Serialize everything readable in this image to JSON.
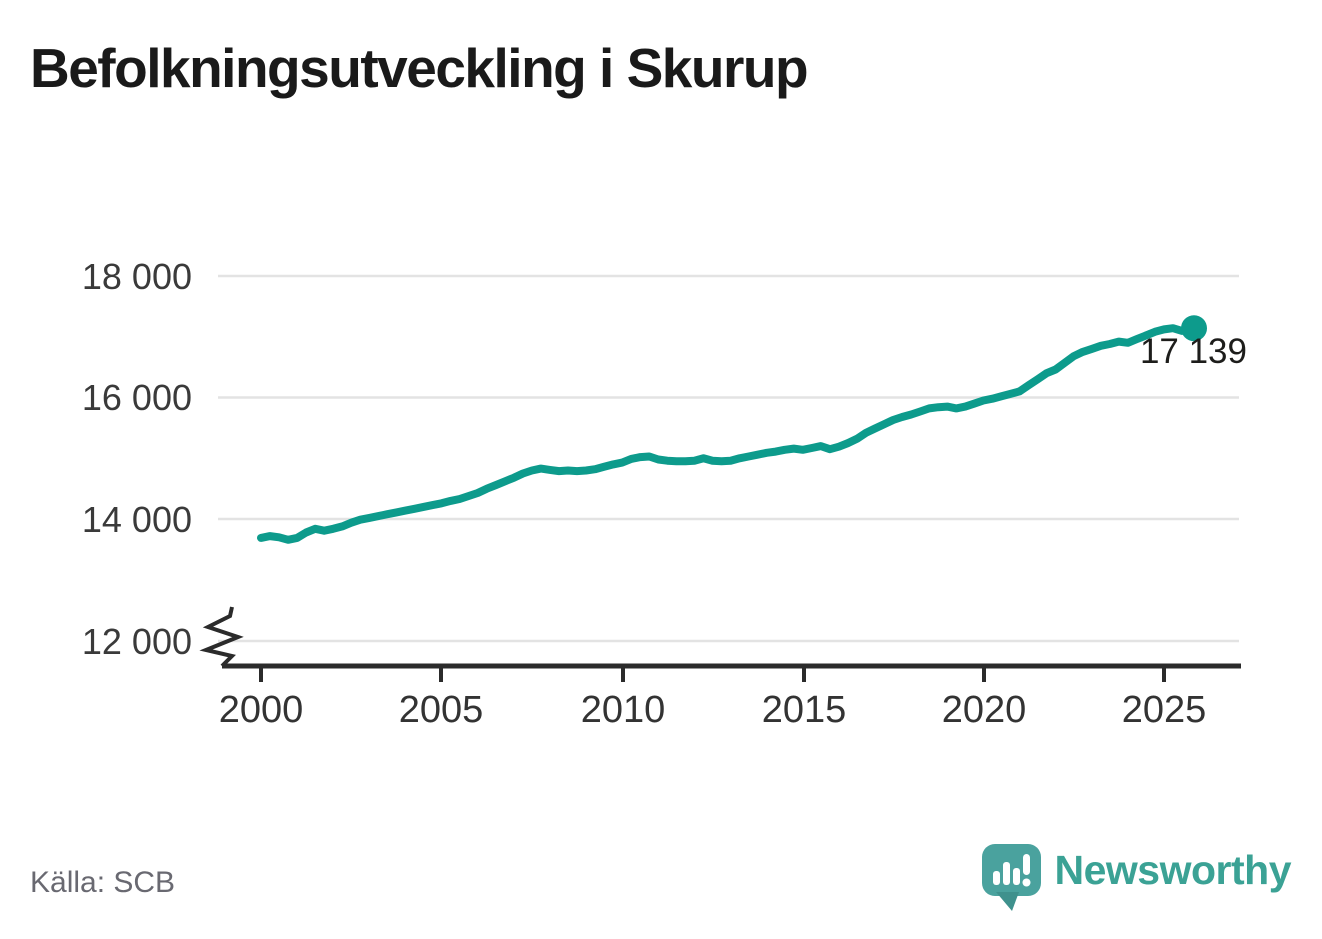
{
  "title": "Befolkningsutveckling i Skurup",
  "source": "Källa: SCB",
  "branding": {
    "name": "Newsworthy",
    "icon": "newsworthy-speech-bubble-chart-icon"
  },
  "colors": {
    "line": "#0d9b8c",
    "dot": "#0d9b8c",
    "logo_bubble": "#4aa29e",
    "logo_tail": "#3f918d",
    "wordmark": "#3ba295",
    "grid": "#e3e3e3",
    "axis": "#2b2b2b"
  },
  "chart_data": {
    "type": "line",
    "title": "Befolkningsutveckling i Skurup",
    "series_name": "Befolkning i Skurup",
    "xlabel": "",
    "ylabel": "",
    "xlim": [
      1999,
      2027.2
    ],
    "ylim": [
      12000,
      18000
    ],
    "grid": "horizontal",
    "axis_break_below": 12000,
    "legend": "none",
    "xticks": [
      "2000",
      "2005",
      "2010",
      "2015",
      "2020",
      "2025"
    ],
    "yticks": [
      "18 000",
      "16 000",
      "14 000",
      "12 000"
    ],
    "ytick_values": [
      18000,
      16000,
      14000,
      12000
    ],
    "end_label": "17 139",
    "end_value": 17139,
    "x": [
      2000.0,
      2000.25,
      2000.5,
      2000.75,
      2001.0,
      2001.25,
      2001.5,
      2001.75,
      2002.0,
      2002.25,
      2002.5,
      2002.75,
      2003.0,
      2003.25,
      2003.5,
      2003.75,
      2004.0,
      2004.25,
      2004.5,
      2004.75,
      2005.0,
      2005.25,
      2005.5,
      2005.75,
      2006.0,
      2006.25,
      2006.5,
      2006.75,
      2007.0,
      2007.25,
      2007.5,
      2007.75,
      2008.0,
      2008.25,
      2008.5,
      2008.75,
      2009.0,
      2009.25,
      2009.5,
      2009.75,
      2010.0,
      2010.25,
      2010.5,
      2010.75,
      2011.0,
      2011.25,
      2011.5,
      2011.75,
      2012.0,
      2012.25,
      2012.5,
      2012.75,
      2013.0,
      2013.25,
      2013.5,
      2013.75,
      2014.0,
      2014.25,
      2014.5,
      2014.75,
      2015.0,
      2015.25,
      2015.5,
      2015.75,
      2016.0,
      2016.25,
      2016.5,
      2016.75,
      2017.0,
      2017.25,
      2017.5,
      2017.75,
      2018.0,
      2018.25,
      2018.5,
      2018.75,
      2019.0,
      2019.25,
      2019.5,
      2019.75,
      2020.0,
      2020.25,
      2020.5,
      2020.75,
      2021.0,
      2021.25,
      2021.5,
      2021.75,
      2022.0,
      2022.25,
      2022.5,
      2022.75,
      2023.0,
      2023.25,
      2023.5,
      2023.75,
      2024.0,
      2024.25,
      2024.5,
      2024.75,
      2025.0,
      2025.25,
      2025.5,
      2025.83
    ],
    "y": [
      13690,
      13720,
      13700,
      13660,
      13690,
      13780,
      13840,
      13810,
      13840,
      13880,
      13940,
      13990,
      14020,
      14050,
      14080,
      14110,
      14140,
      14170,
      14200,
      14230,
      14260,
      14300,
      14330,
      14380,
      14430,
      14500,
      14560,
      14620,
      14680,
      14750,
      14800,
      14830,
      14810,
      14790,
      14800,
      14790,
      14800,
      14820,
      14860,
      14900,
      14930,
      14990,
      15020,
      15030,
      14980,
      14960,
      14950,
      14950,
      14960,
      15000,
      14960,
      14950,
      14960,
      15000,
      15030,
      15060,
      15090,
      15110,
      15140,
      15160,
      15140,
      15170,
      15200,
      15150,
      15190,
      15250,
      15320,
      15420,
      15490,
      15560,
      15630,
      15680,
      15720,
      15770,
      15820,
      15840,
      15850,
      15820,
      15850,
      15900,
      15950,
      15980,
      16020,
      16060,
      16100,
      16200,
      16300,
      16400,
      16460,
      16570,
      16680,
      16750,
      16800,
      16850,
      16880,
      16920,
      16900,
      16960,
      17020,
      17080,
      17120,
      17140,
      17095,
      17139
    ]
  }
}
